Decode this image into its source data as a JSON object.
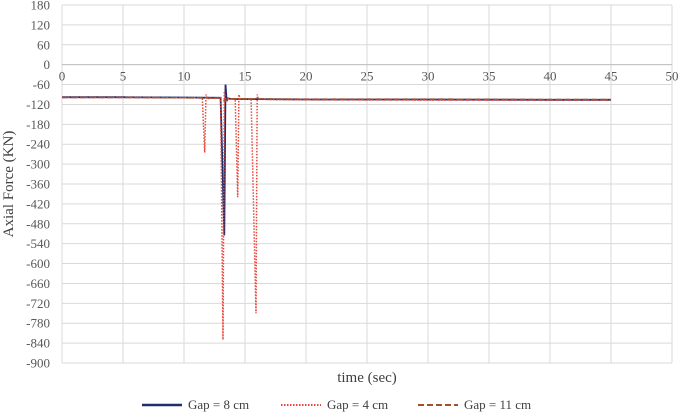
{
  "chart_data": {
    "type": "line",
    "title": "",
    "xlabel": "time (sec)",
    "ylabel": "Axial Force (KN)",
    "xlim": [
      0,
      50
    ],
    "ylim": [
      -900,
      180
    ],
    "x_ticks": [
      0,
      5,
      10,
      15,
      20,
      25,
      30,
      35,
      40,
      45,
      50
    ],
    "y_ticks": [
      180,
      120,
      60,
      0,
      -60,
      -120,
      -180,
      -240,
      -300,
      -360,
      -420,
      -480,
      -540,
      -600,
      -660,
      -720,
      -780,
      -840,
      -900
    ],
    "grid": true,
    "legend_position": "bottom",
    "series": [
      {
        "name": "Gap = 8 cm",
        "color": "#1f2d6b",
        "dash": "solid",
        "x": [
          0,
          5,
          10,
          13.0,
          13.3,
          13.4,
          13.5,
          13.6,
          13.8,
          14.5,
          16,
          20,
          30,
          40,
          45
        ],
        "y": [
          -98,
          -98,
          -99,
          -100,
          -515,
          -60,
          -110,
          -102,
          -103,
          -104,
          -104,
          -105,
          -105,
          -106,
          -106
        ]
      },
      {
        "name": "Gap = 4 cm",
        "color": "#e8463a",
        "dash": "dotted",
        "x": [
          0,
          5,
          10,
          11.5,
          11.7,
          11.8,
          11.9,
          13.0,
          13.2,
          13.3,
          13.4,
          14.2,
          14.4,
          14.5,
          14.6,
          15.5,
          15.9,
          16.0,
          16.1,
          16.2,
          17,
          20,
          30,
          40,
          45
        ],
        "y": [
          -99,
          -99,
          -100,
          -100,
          -265,
          -90,
          -102,
          -100,
          -830,
          -80,
          -103,
          -103,
          -400,
          -90,
          -104,
          -104,
          -750,
          -90,
          -105,
          -103,
          -105,
          -106,
          -107,
          -107,
          -107
        ]
      },
      {
        "name": "Gap = 11 cm",
        "color": "#a0522d",
        "dash": "dashed",
        "x": [
          0,
          5,
          10,
          13.0,
          13.4,
          13.6,
          14.0,
          15,
          20,
          30,
          40,
          45
        ],
        "y": [
          -99,
          -99,
          -100,
          -101,
          -110,
          -104,
          -103,
          -103,
          -104,
          -104,
          -105,
          -105
        ]
      }
    ]
  }
}
